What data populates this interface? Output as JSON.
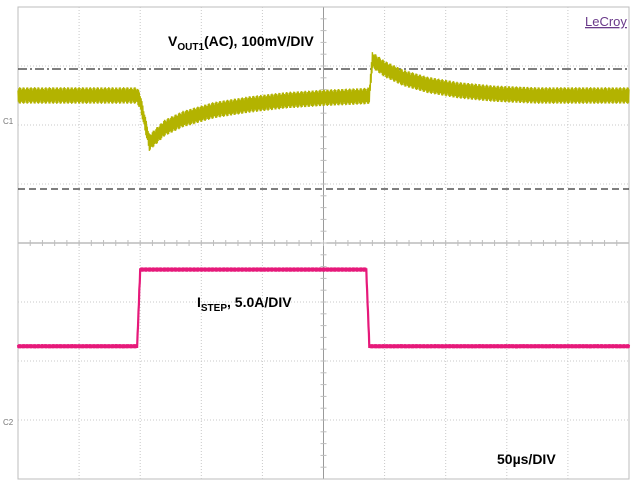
{
  "brand": "LeCroy",
  "annotations": {
    "vout": {
      "main": "V",
      "sub": "OUT1",
      "rest": "(AC), 100mV/DIV"
    },
    "istep": {
      "main": "I",
      "sub": "STEP",
      "rest": ", 5.0A/DIV"
    },
    "timebase": "50µs/DIV"
  },
  "channel_tags": {
    "c1": "C1",
    "c2": "C2"
  },
  "chart_data": {
    "type": "line",
    "title": "",
    "grid": true,
    "divisions": {
      "x": 10,
      "y": 8
    },
    "units": {
      "x": "div",
      "y": "div"
    },
    "xlim": [
      0,
      10
    ],
    "ylim": [
      -4,
      4
    ],
    "colors": {
      "c1": "#b3b300",
      "c2": "#e6197a"
    },
    "series": [
      {
        "channel": "C1",
        "points": [
          [
            0,
            2.5
          ],
          [
            1.95,
            2.5
          ],
          [
            2.0,
            2.4
          ],
          [
            2.15,
            1.7
          ],
          [
            2.4,
            1.95
          ],
          [
            2.7,
            2.1
          ],
          [
            3.2,
            2.25
          ],
          [
            3.8,
            2.35
          ],
          [
            4.4,
            2.42
          ],
          [
            5.0,
            2.46
          ],
          [
            5.7,
            2.49
          ],
          [
            5.75,
            2.5
          ],
          [
            5.8,
            3.1
          ],
          [
            6.0,
            2.95
          ],
          [
            6.3,
            2.8
          ],
          [
            6.7,
            2.68
          ],
          [
            7.2,
            2.59
          ],
          [
            7.8,
            2.53
          ],
          [
            8.5,
            2.5
          ],
          [
            10,
            2.5
          ]
        ],
        "ripple": 0.14
      },
      {
        "channel": "C2",
        "points": [
          [
            0,
            -1.75
          ],
          [
            1.95,
            -1.75
          ],
          [
            2.0,
            -0.45
          ],
          [
            2.05,
            -0.45
          ],
          [
            5.7,
            -0.45
          ],
          [
            5.75,
            -1.75
          ],
          [
            10,
            -1.75
          ]
        ],
        "ripple": 0.035
      }
    ]
  }
}
